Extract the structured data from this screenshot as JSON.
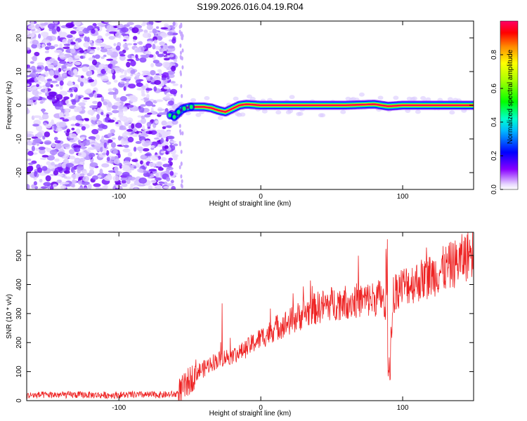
{
  "title": "S199.2026.016.04.19.R04",
  "chart_data": [
    {
      "type": "heatmap",
      "name": "spectrogram",
      "xlabel": "Height of straight line (km)",
      "ylabel": "Frequency (Hz)",
      "xlim": [
        -165,
        150
      ],
      "ylim": [
        -25,
        25
      ],
      "xticks": [
        -100,
        0,
        100
      ],
      "xtick_labels": [
        "-100",
        "0",
        "100"
      ],
      "yticks": [
        -20,
        -10,
        0,
        10,
        20
      ],
      "ytick_labels": [
        "-20",
        "-10",
        "0",
        "10",
        "20"
      ],
      "noise_region_x": [
        -165,
        -55
      ],
      "signal_track": {
        "x": [
          -65,
          -60,
          -55,
          -50,
          -45,
          -40,
          -35,
          -30,
          -25,
          -20,
          -15,
          -10,
          0,
          20,
          40,
          60,
          80,
          85,
          90,
          100,
          120,
          150
        ],
        "freq": [
          -3,
          -3,
          -1,
          -0.5,
          -0.5,
          -0.5,
          -0.8,
          -1.5,
          -2,
          -1,
          0,
          0.3,
          0,
          0,
          0,
          0,
          0.3,
          0,
          -0.3,
          0,
          0,
          0
        ]
      },
      "colorbar": {
        "label": "Normalized spectral amplitude",
        "ticks": [
          0,
          0.2,
          0.4,
          0.6,
          0.8
        ],
        "tick_labels": [
          "0.0",
          "0.2",
          "0.4",
          "0.6",
          "0.8"
        ],
        "range": [
          0,
          1
        ]
      }
    },
    {
      "type": "line",
      "name": "snr",
      "xlabel": "Height of straight line (km)",
      "ylabel": "SNR (10 * v/v)",
      "xlim": [
        -165,
        150
      ],
      "ylim": [
        0,
        580
      ],
      "xticks": [
        -100,
        0,
        100
      ],
      "xtick_labels": [
        "-100",
        "0",
        "100"
      ],
      "yticks": [
        0,
        100,
        200,
        300,
        400,
        500
      ],
      "ytick_labels": [
        "0",
        "100",
        "200",
        "300",
        "400",
        "500"
      ],
      "color": "#ee2222",
      "series": [
        {
          "name": "SNR",
          "x": [
            -165,
            -150,
            -130,
            -110,
            -90,
            -70,
            -60,
            -55,
            -50,
            -45,
            -40,
            -35,
            -30,
            -25,
            -20,
            -15,
            -10,
            -5,
            0,
            5,
            10,
            20,
            30,
            40,
            50,
            60,
            70,
            80,
            86,
            88,
            90,
            92,
            95,
            100,
            110,
            120,
            130,
            140,
            150
          ],
          "y": [
            18,
            20,
            20,
            19,
            20,
            20,
            22,
            40,
            70,
            100,
            110,
            130,
            140,
            150,
            155,
            165,
            180,
            200,
            215,
            230,
            250,
            270,
            300,
            320,
            335,
            340,
            345,
            350,
            360,
            260,
            80,
            250,
            380,
            395,
            410,
            430,
            455,
            480,
            520
          ]
        }
      ]
    }
  ]
}
